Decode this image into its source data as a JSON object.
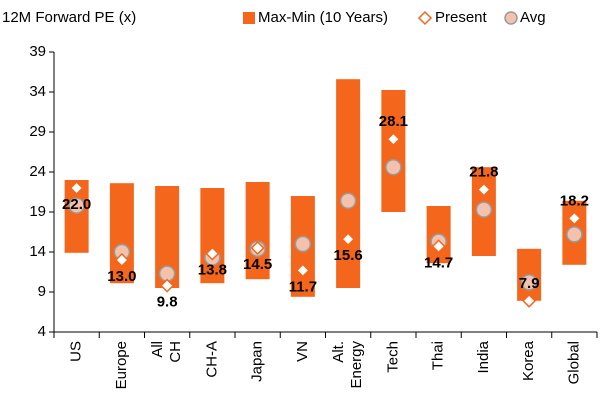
{
  "chart_data": {
    "type": "floating-range",
    "title": "12M Forward PE (x)",
    "categories": [
      "US",
      "Europe",
      "All CH",
      "CH-A",
      "Japan",
      "VN",
      "Alt. Energy",
      "Tech",
      "Thai",
      "India",
      "Korea",
      "Global"
    ],
    "series": [
      {
        "name": "Max-Min (10 Years)",
        "color": "#f4661b",
        "low": [
          13.9,
          10.1,
          9.5,
          10.1,
          10.6,
          8.4,
          9.5,
          19.0,
          12.6,
          13.5,
          7.9,
          12.4
        ],
        "high": [
          23.0,
          22.6,
          22.25,
          22.0,
          22.75,
          21.0,
          35.6,
          34.25,
          19.75,
          24.6,
          14.4,
          20.4
        ]
      },
      {
        "name": "Present",
        "color": "#f4661b",
        "values": [
          22.0,
          13.0,
          9.8,
          13.8,
          14.5,
          11.7,
          15.6,
          28.1,
          14.7,
          21.8,
          7.9,
          18.2
        ],
        "value_labels": [
          "22.0",
          "13.0",
          "9.8",
          "13.8",
          "14.5",
          "11.7",
          "15.6",
          "28.1",
          "14.7",
          "21.8",
          "7.9",
          "18.2"
        ]
      },
      {
        "name": "Avg",
        "color": "#f2c2ae",
        "values": [
          19.8,
          14.0,
          11.3,
          13.3,
          14.4,
          15.0,
          20.4,
          24.6,
          15.3,
          19.3,
          10.2,
          16.2
        ]
      }
    ],
    "ylim": [
      4,
      39
    ],
    "yticks": [
      4,
      9,
      14,
      19,
      24,
      29,
      34,
      39
    ],
    "grid": false
  }
}
